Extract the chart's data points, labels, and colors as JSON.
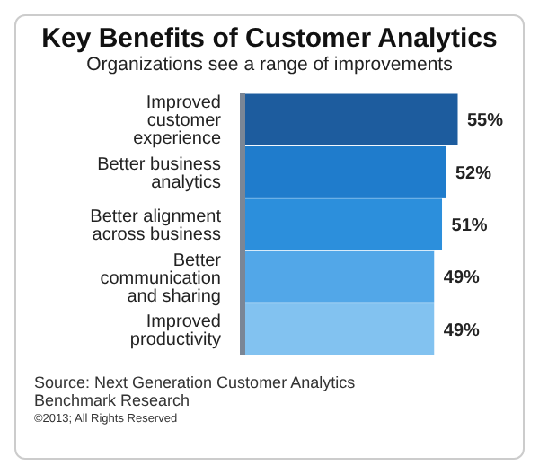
{
  "chart_data": {
    "type": "bar",
    "orientation": "horizontal",
    "title": "Key Benefits of Customer Analytics",
    "subtitle": "Organizations see a range of improvements",
    "categories": [
      "Improved customer experience",
      "Better business analytics",
      "Better alignment across business",
      "Better communication and sharing",
      "Improved productivity"
    ],
    "values": [
      55,
      52,
      51,
      49,
      49
    ],
    "colors": [
      "#1d5c9e",
      "#1f7ccc",
      "#2c8fdc",
      "#52a7e8",
      "#82c2f0"
    ],
    "value_labels": [
      "55%",
      "52%",
      "51%",
      "49%",
      "49%"
    ],
    "annotations": [
      "Source: Next Generation Customer Analytics Benchmark Research",
      "©2013; All Rights Reserved"
    ]
  }
}
